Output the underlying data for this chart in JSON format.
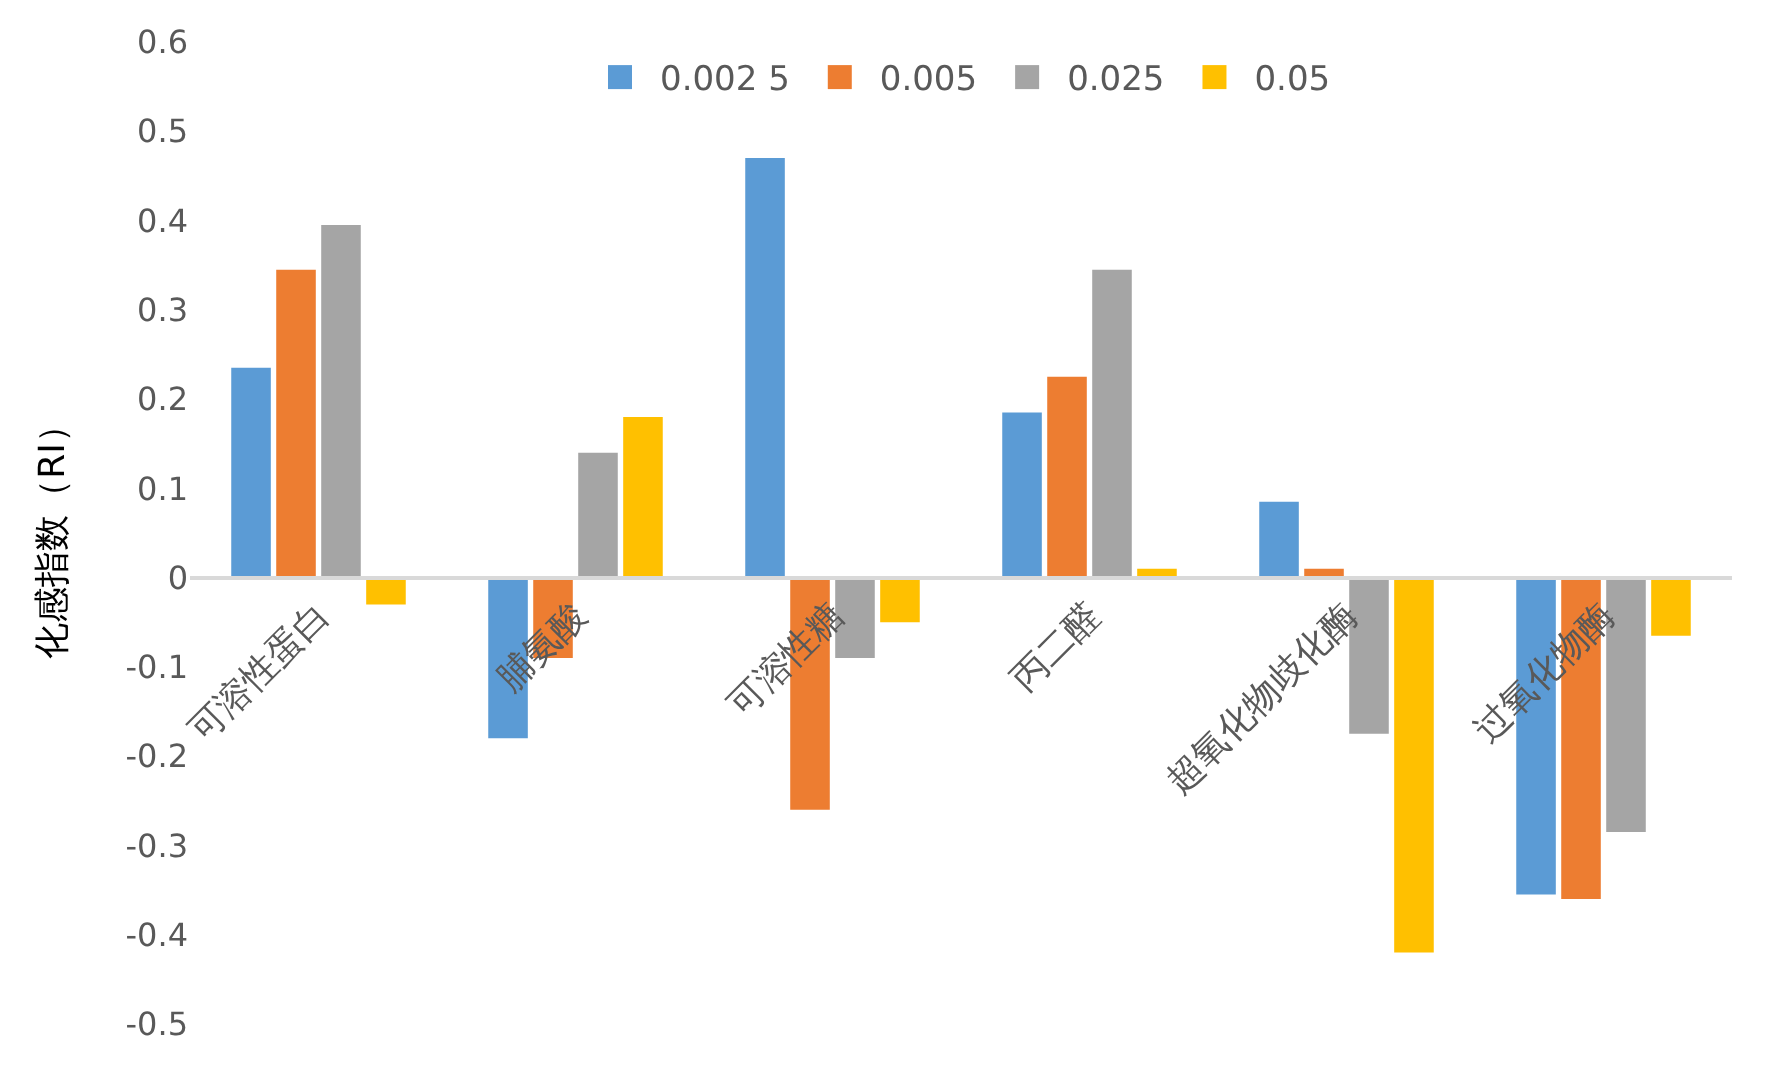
{
  "chart_data": {
    "type": "bar",
    "ylabel": "化感指数（RI）",
    "categories": [
      "可溶性蛋白",
      "脯氨酸",
      "可溶性糖",
      "丙二醛",
      "超氧化物歧化酶",
      "过氧化物酶"
    ],
    "series": [
      {
        "name": "0.002 5",
        "color": "#5b9bd5",
        "values": [
          0.235,
          -0.18,
          0.47,
          0.185,
          0.085,
          -0.355
        ]
      },
      {
        "name": "0.005",
        "color": "#ed7d31",
        "values": [
          0.345,
          -0.09,
          -0.26,
          0.225,
          0.01,
          -0.36
        ]
      },
      {
        "name": "0.025",
        "color": "#a5a5a5",
        "values": [
          0.395,
          0.14,
          -0.09,
          0.345,
          -0.175,
          -0.285
        ]
      },
      {
        "name": "0.05",
        "color": "#ffc000",
        "values": [
          -0.03,
          0.18,
          -0.05,
          0.01,
          -0.42,
          -0.065
        ]
      }
    ],
    "ylim": [
      -0.5,
      0.6
    ],
    "yticks": [
      0.6,
      0.5,
      0.4,
      0.3,
      0.2,
      0.1,
      0,
      -0.1,
      -0.2,
      -0.3,
      -0.4,
      -0.5
    ],
    "legend": "top"
  }
}
